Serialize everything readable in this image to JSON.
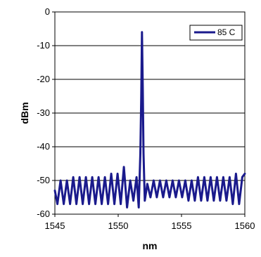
{
  "chart_data": {
    "type": "line",
    "xlabel": "nm",
    "ylabel": "dBm",
    "xlim": [
      1545,
      1560
    ],
    "ylim": [
      -60,
      0
    ],
    "x_ticks": [
      "1545",
      "1550",
      "1555",
      "1560"
    ],
    "y_ticks": [
      "0",
      "-10",
      "-20",
      "-30",
      "-40",
      "-50",
      "-60"
    ],
    "grid": "horizontal",
    "legend_position": "top-right",
    "series_color": "#1a1a8c",
    "series": [
      {
        "name": "85 C",
        "x": [
          1545.0,
          1545.2,
          1545.45,
          1545.7,
          1545.95,
          1546.2,
          1546.45,
          1546.7,
          1546.95,
          1547.2,
          1547.45,
          1547.7,
          1547.95,
          1548.2,
          1548.45,
          1548.7,
          1548.95,
          1549.2,
          1549.45,
          1549.7,
          1549.95,
          1550.2,
          1550.45,
          1550.7,
          1550.95,
          1551.2,
          1551.45,
          1551.62,
          1551.75,
          1551.82,
          1551.88,
          1551.94,
          1552.0,
          1552.1,
          1552.3,
          1552.55,
          1552.8,
          1553.05,
          1553.3,
          1553.55,
          1553.8,
          1554.05,
          1554.3,
          1554.55,
          1554.8,
          1555.05,
          1555.3,
          1555.55,
          1555.8,
          1556.05,
          1556.3,
          1556.55,
          1556.8,
          1557.05,
          1557.3,
          1557.55,
          1557.8,
          1558.05,
          1558.3,
          1558.55,
          1558.8,
          1559.05,
          1559.3,
          1559.55,
          1559.8,
          1560.0
        ],
        "y": [
          -53.0,
          -57.0,
          -50.0,
          -57.0,
          -50.0,
          -57.0,
          -49.0,
          -57.0,
          -49.0,
          -57.0,
          -49.0,
          -57.0,
          -49.0,
          -57.0,
          -49.0,
          -57.0,
          -49.0,
          -57.0,
          -48.0,
          -57.0,
          -48.0,
          -57.0,
          -46.0,
          -58.0,
          -50.0,
          -56.0,
          -49.0,
          -58.0,
          -42.0,
          -25.0,
          -6.0,
          -22.0,
          -42.0,
          -56.0,
          -51.0,
          -55.0,
          -50.0,
          -55.0,
          -50.0,
          -55.0,
          -50.0,
          -55.0,
          -50.0,
          -55.0,
          -50.0,
          -55.0,
          -50.0,
          -56.0,
          -50.0,
          -56.0,
          -49.0,
          -56.0,
          -49.0,
          -56.0,
          -49.0,
          -56.0,
          -49.0,
          -56.0,
          -49.0,
          -56.0,
          -49.0,
          -57.0,
          -48.0,
          -57.0,
          -49.0,
          -48.0
        ]
      }
    ]
  }
}
